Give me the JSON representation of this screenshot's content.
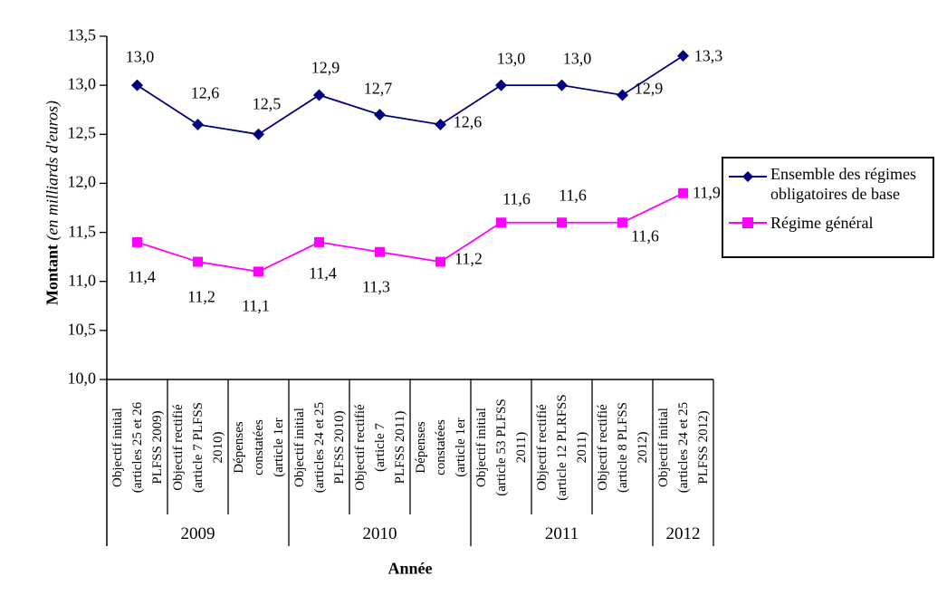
{
  "chart_data": {
    "type": "line",
    "xlabel": "Année",
    "ylabel_bold": "Montant",
    "ylabel_italic": " (en milliards d'euros)",
    "ylim": [
      10.0,
      13.5
    ],
    "ytick_step": 0.5,
    "yticks": [
      "10,0",
      "10,5",
      "11,0",
      "11,5",
      "12,0",
      "12,5",
      "13,0",
      "13,5"
    ],
    "grid": false,
    "legend_position": "right",
    "axis_color": "#000000",
    "year_groups": [
      {
        "label": "2009",
        "span": 3
      },
      {
        "label": "2010",
        "span": 3
      },
      {
        "label": "2011",
        "span": 3
      },
      {
        "label": "2012",
        "span": 1
      }
    ],
    "categories": [
      {
        "lines": [
          "Objectif initial",
          "(articles 25 et 26",
          "PLFSS 2009)"
        ]
      },
      {
        "lines": [
          "Objectif rectifié",
          "(article 7 PLFSS",
          "2010)"
        ]
      },
      {
        "lines": [
          "Dépenses",
          "constatées",
          "(article 1er"
        ]
      },
      {
        "lines": [
          "Objectif initial",
          "(articles 24 et 25",
          "PLFSS 2010)"
        ]
      },
      {
        "lines": [
          "Objectif rectifié",
          "(article 7",
          "PLFSS 2011)"
        ]
      },
      {
        "lines": [
          "Dépenses",
          "constatées",
          "(article 1er"
        ]
      },
      {
        "lines": [
          "Objectif initial",
          "(article 53 PLFSS",
          "2011)"
        ]
      },
      {
        "lines": [
          "Objectif rectifié",
          "(article 12 PLRFSS",
          "2011)"
        ]
      },
      {
        "lines": [
          "Objectif rectifié",
          "(article 8 PLFSS",
          "2012)"
        ]
      },
      {
        "lines": [
          "Objectif initial",
          "(articles 24 et 25",
          "PLFSS 2012)"
        ]
      }
    ],
    "series": [
      {
        "name": "Ensemble des régimes obligatoires de base",
        "legend_lines": [
          "Ensemble des régimes",
          "obligatoires de base"
        ],
        "color": "#000080",
        "marker": "diamond",
        "values": [
          13.0,
          12.6,
          12.5,
          12.9,
          12.7,
          12.6,
          13.0,
          13.0,
          12.9,
          13.3
        ],
        "labels": [
          "13,0",
          "12,6",
          "12,5",
          "12,9",
          "12,7",
          "12,6",
          "13,0",
          "13,0",
          "12,9",
          "13,3"
        ],
        "label_offsets": [
          [
            3,
            -31
          ],
          [
            8,
            -34
          ],
          [
            9,
            -33
          ],
          [
            7,
            -30
          ],
          [
            -2,
            -29
          ],
          [
            30,
            -2
          ],
          [
            11,
            -29
          ],
          [
            17,
            -29
          ],
          [
            29,
            -7
          ],
          [
            28,
            0
          ]
        ]
      },
      {
        "name": "Régime général",
        "legend_lines": [
          "Régime général"
        ],
        "color": "#FF00FF",
        "marker": "square",
        "values": [
          11.4,
          11.2,
          11.1,
          11.4,
          11.3,
          11.2,
          11.6,
          11.6,
          11.6,
          11.9
        ],
        "labels": [
          "11,4",
          "11,2",
          "11,1",
          "11,4",
          "11,3",
          "11,2",
          "11,6",
          "11,6",
          "11,6",
          "11,9"
        ],
        "label_offsets": [
          [
            5,
            39
          ],
          [
            4,
            39
          ],
          [
            -3,
            38
          ],
          [
            4,
            35
          ],
          [
            -4,
            39
          ],
          [
            31,
            -3
          ],
          [
            17,
            -26
          ],
          [
            12,
            -30
          ],
          [
            25,
            15
          ],
          [
            26,
            0
          ]
        ]
      }
    ]
  }
}
